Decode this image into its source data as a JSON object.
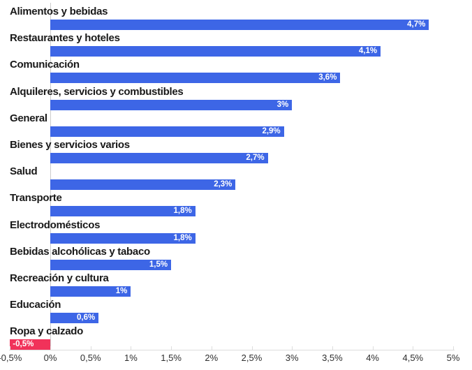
{
  "chart_data": {
    "type": "bar",
    "orientation": "horizontal",
    "title": "",
    "xlabel": "",
    "ylabel": "",
    "xlim": [
      -0.5,
      5
    ],
    "grid": "zero-line-only",
    "legend": "none",
    "categories": [
      "Alimentos y bebidas",
      "Restaurantes y hoteles",
      "Comunicación",
      "Alquileres, servicios y combustibles",
      "General",
      "Bienes y servicios varios",
      "Salud",
      "Transporte",
      "Electrodomésticos",
      "Bebidas alcohólicas y tabaco",
      "Recreación y cultura",
      "Educación",
      "Ropa y calzado"
    ],
    "values": [
      4.7,
      4.1,
      3.6,
      3.0,
      2.9,
      2.7,
      2.3,
      1.8,
      1.8,
      1.5,
      1.0,
      0.6,
      -0.5
    ],
    "value_labels": [
      "4,7%",
      "4,1%",
      "3,6%",
      "3%",
      "2,9%",
      "2,7%",
      "2,3%",
      "1,8%",
      "1,8%",
      "1,5%",
      "1%",
      "0,6%",
      "-0,5%"
    ],
    "x_ticks": [
      {
        "value": -0.5,
        "label": "-0,5%"
      },
      {
        "value": 0,
        "label": "0%"
      },
      {
        "value": 0.5,
        "label": "0,5%"
      },
      {
        "value": 1,
        "label": "1%"
      },
      {
        "value": 1.5,
        "label": "1,5%"
      },
      {
        "value": 2,
        "label": "2%"
      },
      {
        "value": 2.5,
        "label": "2,5%"
      },
      {
        "value": 3,
        "label": "3%"
      },
      {
        "value": 3.5,
        "label": "3,5%"
      },
      {
        "value": 4,
        "label": "4%"
      },
      {
        "value": 4.5,
        "label": "4,5%"
      },
      {
        "value": 5,
        "label": "5%"
      }
    ],
    "colors": {
      "positive_bar": "#3d66e6",
      "negative_bar": "#f1325a",
      "bar_value_text": "#ffffff",
      "category_label_text": "#191919",
      "tick_label_text": "#2e2e2e",
      "zero_line": "#cccccc",
      "axis_line": "#dddddd"
    }
  }
}
